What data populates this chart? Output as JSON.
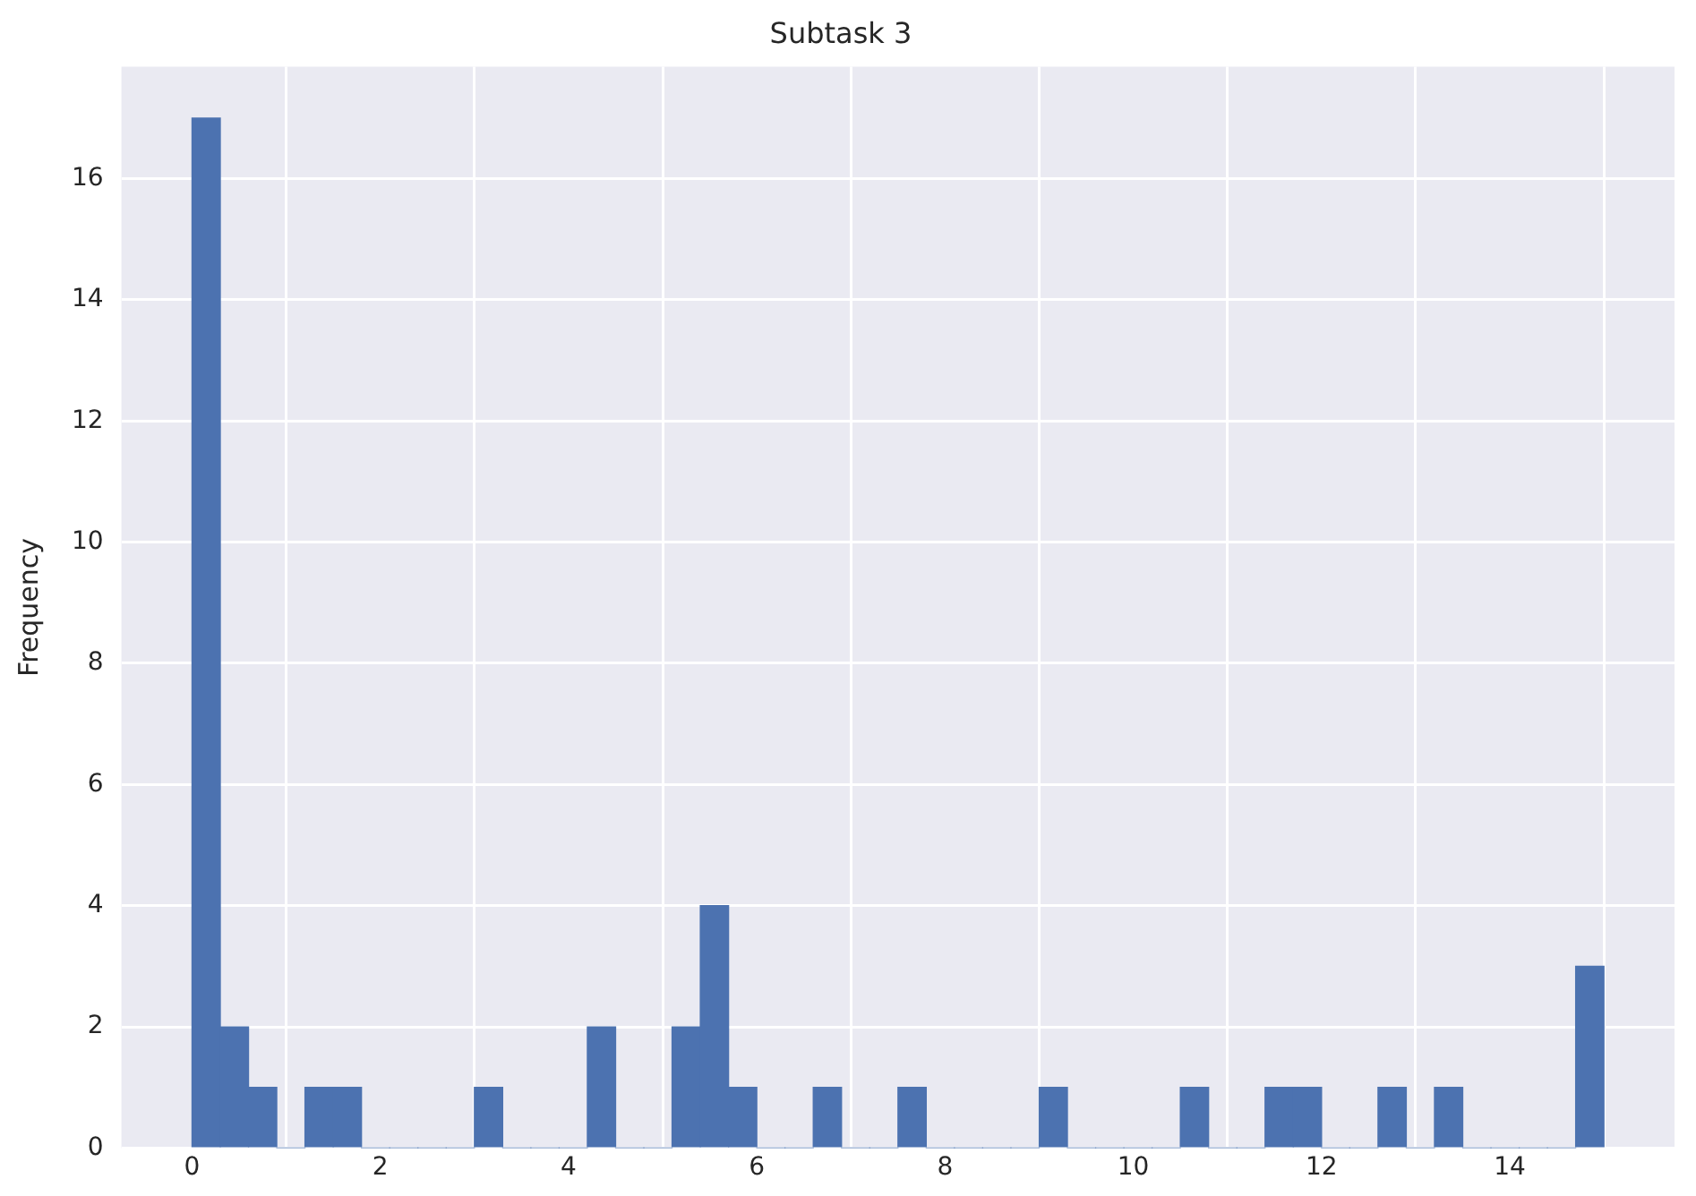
{
  "chart_data": {
    "type": "histogram",
    "title": "Subtask 3",
    "ylabel": "Frequency",
    "bins": [
      0,
      0.3,
      0.6,
      0.9,
      1.2,
      1.5,
      1.8,
      2.1,
      2.4,
      2.7,
      3.0,
      3.3,
      3.6,
      3.9,
      4.2,
      4.5,
      4.8,
      5.1,
      5.4,
      5.7,
      6.0,
      6.3,
      6.6,
      6.9,
      7.2,
      7.5,
      7.8,
      8.1,
      8.4,
      8.7,
      9.0,
      9.3,
      9.6,
      9.9,
      10.2,
      10.5,
      10.8,
      11.1,
      11.4,
      11.7,
      12.0,
      12.3,
      12.6,
      12.9,
      13.2,
      13.5,
      13.8,
      14.1,
      14.4,
      14.7,
      15.0
    ],
    "values": [
      17,
      2,
      1,
      0,
      1,
      1,
      0,
      0,
      0,
      0,
      1,
      0,
      0,
      0,
      2,
      0,
      0,
      2,
      4,
      1,
      0,
      0,
      1,
      0,
      0,
      1,
      0,
      0,
      0,
      0,
      1,
      0,
      0,
      0,
      0,
      1,
      0,
      0,
      1,
      1,
      0,
      0,
      1,
      0,
      1,
      0,
      0,
      0,
      0,
      3
    ],
    "color": "#4c72b0",
    "xlim": [
      -0.75,
      15.75
    ],
    "xticks": [
      0,
      2,
      4,
      6,
      8,
      10,
      12,
      14
    ],
    "ylim": [
      0,
      17.85
    ],
    "yticks": [
      0,
      2,
      4,
      6,
      8,
      10,
      12,
      14,
      16
    ],
    "grid": true
  }
}
